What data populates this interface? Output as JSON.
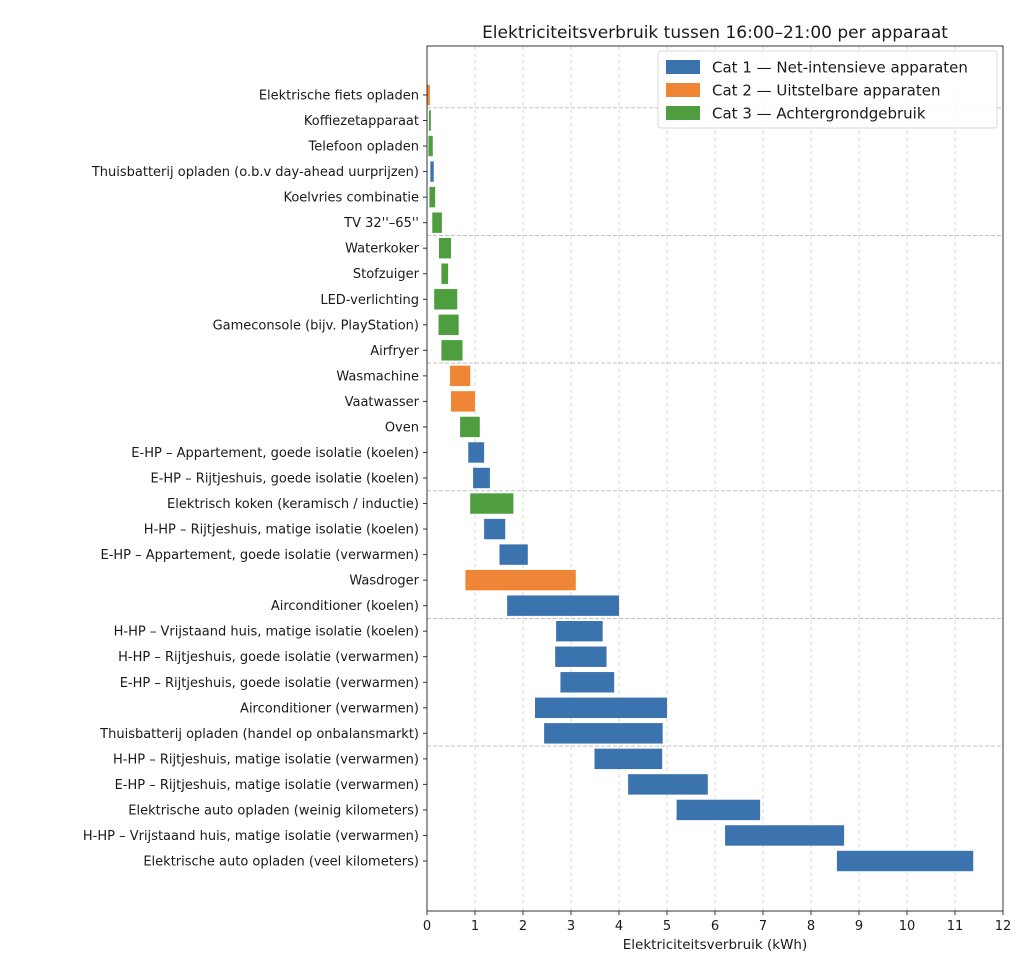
{
  "chart_data": {
    "type": "bar",
    "orientation": "horizontal-floating",
    "title": "Elektriciteitsverbruik tussen 16:00–21:00 per apparaat",
    "xlabel": "Elektriciteitsverbruik (kWh)",
    "ylabel": "",
    "xlim": [
      0,
      12
    ],
    "xticks": [
      "0",
      "1",
      "2",
      "3",
      "4",
      "5",
      "6",
      "7",
      "8",
      "9",
      "10",
      "11",
      "12"
    ],
    "grid": "x dashed",
    "group_separators_every": 5,
    "legend": {
      "position": "top-right",
      "entries": [
        {
          "category": 1,
          "label": "Cat 1 — Net-intensieve apparaten",
          "color": "#3a73ad"
        },
        {
          "category": 2,
          "label": "Cat 2 — Uitstelbare apparaten",
          "color": "#ef8636"
        },
        {
          "category": 3,
          "label": "Cat 3 — Achtergrondgebruik",
          "color": "#4e9e3f"
        }
      ]
    },
    "categories": [
      "Elektrische fiets opladen",
      "Koffiezetapparaat",
      "Telefoon opladen",
      "Thuisbatterij opladen (o.b.v day-ahead uurprijzen)",
      "Koelvries combinatie",
      "TV 32''–65''",
      "Waterkoker",
      "Stofzuiger",
      "LED-verlichting",
      "Gameconsole (bijv. PlayStation)",
      "Airfryer",
      "Wasmachine",
      "Vaatwasser",
      "Oven",
      "E-HP – Appartement, goede isolatie (koelen)",
      "E-HP – Rijtjeshuis, goede isolatie (koelen)",
      "Elektrisch koken (keramisch / inductie)",
      "H-HP – Rijtjeshuis, matige isolatie (koelen)",
      "E-HP – Appartement, goede isolatie (verwarmen)",
      "Wasdroger",
      "Airconditioner (koelen)",
      "H-HP – Vrijstaand huis, matige isolatie (koelen)",
      "H-HP – Rijtjeshuis, goede isolatie (verwarmen)",
      "E-HP – Rijtjeshuis, goede isolatie (verwarmen)",
      "Airconditioner (verwarmen)",
      "Thuisbatterij opladen (handel op onbalansmarkt)",
      "H-HP – Rijtjeshuis, matige isolatie (verwarmen)",
      "E-HP – Rijtjeshuis, matige isolatie (verwarmen)",
      "Elektrische auto opladen (weinig kilometers)",
      "H-HP – Vrijstaand huis, matige isolatie (verwarmen)",
      "Elektrische auto opladen (veel kilometers)"
    ],
    "series": [
      {
        "name": "range_kWh",
        "values": [
          {
            "min": 0.01,
            "max": 0.06,
            "cat": 2
          },
          {
            "min": 0.04,
            "max": 0.08,
            "cat": 3
          },
          {
            "min": 0.03,
            "max": 0.12,
            "cat": 3
          },
          {
            "min": 0.07,
            "max": 0.14,
            "cat": 1
          },
          {
            "min": 0.05,
            "max": 0.17,
            "cat": 3
          },
          {
            "min": 0.11,
            "max": 0.31,
            "cat": 3
          },
          {
            "min": 0.25,
            "max": 0.5,
            "cat": 3
          },
          {
            "min": 0.3,
            "max": 0.44,
            "cat": 3
          },
          {
            "min": 0.15,
            "max": 0.63,
            "cat": 3
          },
          {
            "min": 0.24,
            "max": 0.66,
            "cat": 3
          },
          {
            "min": 0.3,
            "max": 0.74,
            "cat": 3
          },
          {
            "min": 0.48,
            "max": 0.9,
            "cat": 2
          },
          {
            "min": 0.5,
            "max": 1.0,
            "cat": 2
          },
          {
            "min": 0.69,
            "max": 1.1,
            "cat": 3
          },
          {
            "min": 0.86,
            "max": 1.19,
            "cat": 1
          },
          {
            "min": 0.96,
            "max": 1.31,
            "cat": 1
          },
          {
            "min": 0.9,
            "max": 1.8,
            "cat": 3
          },
          {
            "min": 1.19,
            "max": 1.63,
            "cat": 1
          },
          {
            "min": 1.51,
            "max": 2.1,
            "cat": 1
          },
          {
            "min": 0.8,
            "max": 3.1,
            "cat": 2
          },
          {
            "min": 1.67,
            "max": 4.0,
            "cat": 1
          },
          {
            "min": 2.69,
            "max": 3.66,
            "cat": 1
          },
          {
            "min": 2.67,
            "max": 3.74,
            "cat": 1
          },
          {
            "min": 2.78,
            "max": 3.9,
            "cat": 1
          },
          {
            "min": 2.25,
            "max": 5.0,
            "cat": 1
          },
          {
            "min": 2.44,
            "max": 4.91,
            "cat": 1
          },
          {
            "min": 3.49,
            "max": 4.9,
            "cat": 1
          },
          {
            "min": 4.19,
            "max": 5.85,
            "cat": 1
          },
          {
            "min": 5.2,
            "max": 6.94,
            "cat": 1
          },
          {
            "min": 6.21,
            "max": 8.69,
            "cat": 1
          },
          {
            "min": 8.54,
            "max": 11.38,
            "cat": 1
          }
        ]
      }
    ]
  }
}
